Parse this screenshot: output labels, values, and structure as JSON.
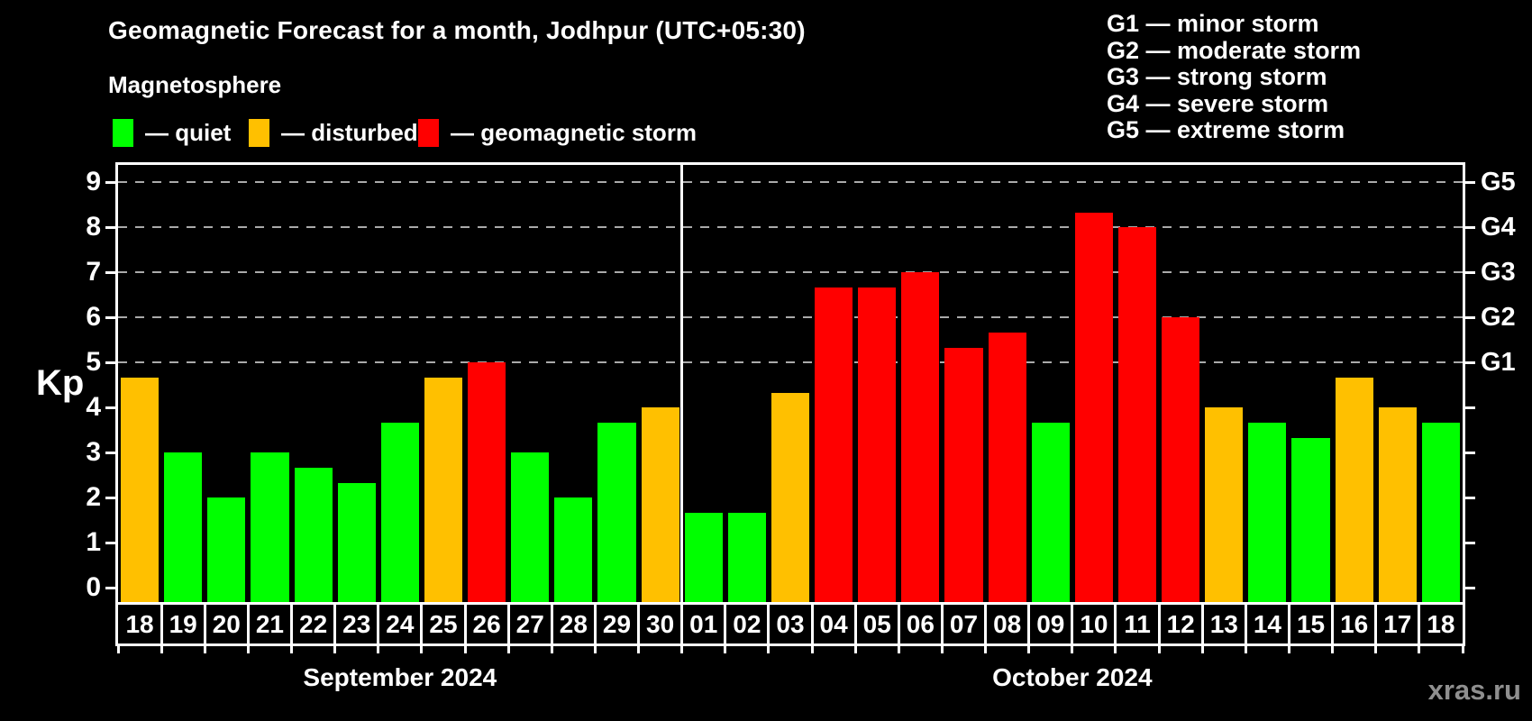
{
  "header": {
    "title": "Geomagnetic Forecast for a month, Jodhpur (UTC+05:30)",
    "subtitle": "Magnetosphere"
  },
  "legend": {
    "items": [
      {
        "key": "quiet",
        "label": "— quiet",
        "color": "#00ff00",
        "x": 125
      },
      {
        "key": "disturbed",
        "label": "— disturbed",
        "color": "#ffc000",
        "x": 276
      },
      {
        "key": "storm",
        "label": "— geomagnetic storm",
        "color": "#ff0000",
        "x": 464
      }
    ]
  },
  "g_scale": {
    "items": [
      {
        "label": "G1 — minor storm",
        "short": "G1",
        "kp": 5
      },
      {
        "label": "G2 — moderate storm",
        "short": "G2",
        "kp": 6
      },
      {
        "label": "G3 — strong storm",
        "short": "G3",
        "kp": 7
      },
      {
        "label": "G4 — severe storm",
        "short": "G4",
        "kp": 8
      },
      {
        "label": "G5 — extreme storm",
        "short": "G5",
        "kp": 9
      }
    ]
  },
  "watermark": "xras.ru",
  "chart_data": {
    "type": "bar",
    "title": "Geomagnetic Forecast for a month, Jodhpur (UTC+05:30)",
    "ylabel": "Kp",
    "ylim": [
      -0.32,
      9.4
    ],
    "y_ticks": [
      0,
      1,
      2,
      3,
      4,
      5,
      6,
      7,
      8,
      9
    ],
    "gridlines_kp": [
      5,
      6,
      7,
      8,
      9
    ],
    "grid": "dashed horizontal lines at G-storm levels only",
    "legend_position": "top-left",
    "colors": {
      "quiet": "#00ff00",
      "disturbed": "#ffc000",
      "storm": "#ff0000"
    },
    "groups": [
      {
        "month": "September 2024",
        "days": [
          {
            "day": "18",
            "kp": 4.67,
            "status": "disturbed"
          },
          {
            "day": "19",
            "kp": 3.0,
            "status": "quiet"
          },
          {
            "day": "20",
            "kp": 2.0,
            "status": "quiet"
          },
          {
            "day": "21",
            "kp": 3.0,
            "status": "quiet"
          },
          {
            "day": "22",
            "kp": 2.67,
            "status": "quiet"
          },
          {
            "day": "23",
            "kp": 2.33,
            "status": "quiet"
          },
          {
            "day": "24",
            "kp": 3.67,
            "status": "quiet"
          },
          {
            "day": "25",
            "kp": 4.67,
            "status": "disturbed"
          },
          {
            "day": "26",
            "kp": 5.0,
            "status": "storm"
          },
          {
            "day": "27",
            "kp": 3.0,
            "status": "quiet"
          },
          {
            "day": "28",
            "kp": 2.0,
            "status": "quiet"
          },
          {
            "day": "29",
            "kp": 3.67,
            "status": "quiet"
          },
          {
            "day": "30",
            "kp": 4.0,
            "status": "disturbed"
          }
        ]
      },
      {
        "month": "October 2024",
        "days": [
          {
            "day": "01",
            "kp": 1.67,
            "status": "quiet"
          },
          {
            "day": "02",
            "kp": 1.67,
            "status": "quiet"
          },
          {
            "day": "03",
            "kp": 4.33,
            "status": "disturbed"
          },
          {
            "day": "04",
            "kp": 6.67,
            "status": "storm"
          },
          {
            "day": "05",
            "kp": 6.67,
            "status": "storm"
          },
          {
            "day": "06",
            "kp": 7.0,
            "status": "storm"
          },
          {
            "day": "07",
            "kp": 5.33,
            "status": "storm"
          },
          {
            "day": "08",
            "kp": 5.67,
            "status": "storm"
          },
          {
            "day": "09",
            "kp": 3.67,
            "status": "quiet"
          },
          {
            "day": "10",
            "kp": 8.33,
            "status": "storm"
          },
          {
            "day": "11",
            "kp": 8.0,
            "status": "storm"
          },
          {
            "day": "12",
            "kp": 6.0,
            "status": "storm"
          },
          {
            "day": "13",
            "kp": 4.0,
            "status": "disturbed"
          },
          {
            "day": "14",
            "kp": 3.67,
            "status": "quiet"
          },
          {
            "day": "15",
            "kp": 3.33,
            "status": "quiet"
          },
          {
            "day": "16",
            "kp": 4.67,
            "status": "disturbed"
          },
          {
            "day": "17",
            "kp": 4.0,
            "status": "disturbed"
          },
          {
            "day": "18",
            "kp": 3.67,
            "status": "quiet"
          }
        ]
      }
    ]
  }
}
